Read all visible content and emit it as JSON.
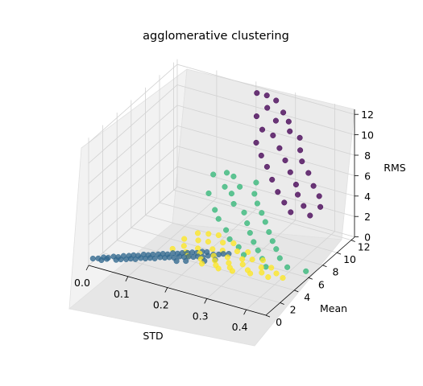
{
  "chart_data": {
    "type": "scatter",
    "projection": "3d",
    "title": "agglomerative clustering",
    "xlabel": "STD",
    "ylabel": "Mean",
    "zlabel": "RMS",
    "xlim": [
      0.0,
      0.45
    ],
    "ylim": [
      0,
      12.5
    ],
    "zlim": [
      0,
      12.5
    ],
    "x_ticks": [
      "0.0",
      "0.1",
      "0.2",
      "0.3",
      "0.4"
    ],
    "y_ticks": [
      "0",
      "2",
      "4",
      "6",
      "8",
      "10",
      "12"
    ],
    "z_ticks": [
      "0",
      "2",
      "4",
      "6",
      "8",
      "10",
      "12"
    ],
    "grid": true,
    "colors": {
      "cluster_0": "#440154",
      "cluster_1": "#31688e",
      "cluster_2": "#35b779",
      "cluster_3": "#fde725"
    },
    "series": [
      {
        "points": [
          [
            0.22,
            11.5,
            12.2
          ],
          [
            0.24,
            11.8,
            12.0
          ],
          [
            0.26,
            12.0,
            11.6
          ],
          [
            0.25,
            11.3,
            11.2
          ],
          [
            0.28,
            11.9,
            10.7
          ],
          [
            0.23,
            10.9,
            10.4
          ],
          [
            0.27,
            11.4,
            10.1
          ],
          [
            0.29,
            12.1,
            9.8
          ],
          [
            0.25,
            10.6,
            9.5
          ],
          [
            0.3,
            11.7,
            9.2
          ],
          [
            0.27,
            11.0,
            8.9
          ],
          [
            0.32,
            12.0,
            8.6
          ],
          [
            0.24,
            10.3,
            8.3
          ],
          [
            0.29,
            10.8,
            8.0
          ],
          [
            0.33,
            11.5,
            7.8
          ],
          [
            0.26,
            9.9,
            7.5
          ],
          [
            0.31,
            10.5,
            7.2
          ],
          [
            0.34,
            11.2,
            7.0
          ],
          [
            0.28,
            9.6,
            6.8
          ],
          [
            0.33,
            10.1,
            6.5
          ],
          [
            0.36,
            11.0,
            6.2
          ],
          [
            0.3,
            9.2,
            6.0
          ],
          [
            0.35,
            9.8,
            5.7
          ],
          [
            0.38,
            10.6,
            5.4
          ],
          [
            0.32,
            8.9,
            5.2
          ],
          [
            0.36,
            9.5,
            5.0
          ],
          [
            0.4,
            10.3,
            4.8
          ],
          [
            0.34,
            8.7,
            4.5
          ],
          [
            0.38,
            9.2,
            4.3
          ],
          [
            0.41,
            9.9,
            4.1
          ],
          [
            0.36,
            8.5,
            3.9
          ],
          [
            0.4,
            9.0,
            3.7
          ]
        ]
      },
      {
        "points": [
          [
            0.0,
            0.6,
            0.3
          ],
          [
            0.01,
            0.8,
            0.3
          ],
          [
            0.02,
            1.0,
            0.4
          ],
          [
            0.02,
            0.7,
            0.3
          ],
          [
            0.03,
            1.1,
            0.4
          ],
          [
            0.04,
            1.3,
            0.5
          ],
          [
            0.03,
            0.9,
            0.4
          ],
          [
            0.05,
            1.4,
            0.5
          ],
          [
            0.05,
            1.1,
            0.4
          ],
          [
            0.06,
            1.6,
            0.6
          ],
          [
            0.06,
            1.2,
            0.5
          ],
          [
            0.07,
            1.8,
            0.6
          ],
          [
            0.07,
            1.4,
            0.5
          ],
          [
            0.08,
            1.9,
            0.7
          ],
          [
            0.08,
            1.5,
            0.6
          ],
          [
            0.09,
            2.0,
            0.7
          ],
          [
            0.09,
            1.6,
            0.6
          ],
          [
            0.1,
            2.2,
            0.8
          ],
          [
            0.1,
            1.8,
            0.7
          ],
          [
            0.11,
            2.3,
            0.8
          ],
          [
            0.11,
            1.9,
            0.7
          ],
          [
            0.12,
            2.4,
            0.9
          ],
          [
            0.12,
            2.0,
            0.8
          ],
          [
            0.13,
            2.6,
            0.9
          ],
          [
            0.13,
            2.1,
            0.8
          ],
          [
            0.14,
            2.7,
            1.0
          ],
          [
            0.14,
            2.3,
            0.9
          ],
          [
            0.15,
            2.8,
            1.0
          ],
          [
            0.15,
            2.4,
            0.9
          ],
          [
            0.16,
            3.0,
            1.1
          ],
          [
            0.16,
            2.5,
            1.0
          ],
          [
            0.17,
            3.1,
            1.1
          ],
          [
            0.17,
            2.6,
            1.0
          ],
          [
            0.18,
            3.2,
            1.2
          ],
          [
            0.18,
            2.8,
            1.1
          ],
          [
            0.19,
            3.4,
            1.2
          ],
          [
            0.19,
            2.9,
            1.1
          ],
          [
            0.2,
            3.5,
            1.3
          ],
          [
            0.2,
            3.0,
            1.2
          ],
          [
            0.21,
            3.6,
            1.3
          ],
          [
            0.21,
            3.1,
            1.2
          ],
          [
            0.22,
            3.8,
            1.4
          ],
          [
            0.22,
            3.2,
            1.3
          ],
          [
            0.23,
            3.9,
            1.4
          ],
          [
            0.23,
            3.3,
            1.3
          ],
          [
            0.24,
            3.5,
            1.4
          ],
          [
            0.25,
            3.7,
            1.5
          ],
          [
            0.26,
            3.9,
            1.5
          ],
          [
            0.27,
            4.0,
            1.6
          ],
          [
            0.28,
            4.2,
            1.6
          ],
          [
            0.2,
            2.6,
            1.0
          ],
          [
            0.24,
            3.0,
            1.2
          ],
          [
            0.26,
            3.4,
            1.3
          ],
          [
            0.18,
            2.4,
            0.9
          ]
        ]
      },
      {
        "points": [
          [
            0.14,
            9.8,
            4.4
          ],
          [
            0.16,
            10.6,
            4.3
          ],
          [
            0.18,
            9.2,
            4.0
          ],
          [
            0.17,
            11.0,
            3.8
          ],
          [
            0.2,
            10.2,
            3.6
          ],
          [
            0.22,
            11.4,
            3.5
          ],
          [
            0.15,
            8.6,
            3.4
          ],
          [
            0.19,
            9.6,
            3.2
          ],
          [
            0.23,
            10.6,
            3.0
          ],
          [
            0.21,
            8.8,
            2.9
          ],
          [
            0.25,
            9.9,
            2.7
          ],
          [
            0.18,
            7.8,
            2.6
          ],
          [
            0.24,
            8.6,
            2.5
          ],
          [
            0.27,
            9.4,
            2.3
          ],
          [
            0.2,
            7.2,
            2.3
          ],
          [
            0.26,
            7.9,
            2.1
          ],
          [
            0.29,
            8.8,
            2.0
          ],
          [
            0.23,
            6.6,
            1.9
          ],
          [
            0.28,
            7.2,
            1.8
          ],
          [
            0.31,
            8.2,
            1.6
          ],
          [
            0.25,
            6.0,
            1.6
          ],
          [
            0.3,
            6.6,
            1.5
          ],
          [
            0.33,
            7.6,
            1.3
          ],
          [
            0.28,
            5.6,
            1.4
          ],
          [
            0.32,
            6.1,
            1.2
          ],
          [
            0.35,
            7.0,
            1.1
          ],
          [
            0.3,
            5.2,
            1.1
          ],
          [
            0.34,
            5.6,
            0.9
          ],
          [
            0.37,
            6.4,
            0.8
          ],
          [
            0.36,
            5.0,
            0.7
          ],
          [
            0.4,
            5.8,
            0.6
          ],
          [
            0.44,
            6.2,
            0.4
          ]
        ]
      },
      {
        "points": [
          [
            0.18,
            5.4,
            1.8
          ],
          [
            0.2,
            5.8,
            1.7
          ],
          [
            0.22,
            6.1,
            1.6
          ],
          [
            0.16,
            4.6,
            1.5
          ],
          [
            0.19,
            4.9,
            1.5
          ],
          [
            0.21,
            5.2,
            1.4
          ],
          [
            0.24,
            5.6,
            1.4
          ],
          [
            0.26,
            6.0,
            1.3
          ],
          [
            0.17,
            4.0,
            1.3
          ],
          [
            0.2,
            4.3,
            1.2
          ],
          [
            0.23,
            4.7,
            1.2
          ],
          [
            0.25,
            5.0,
            1.1
          ],
          [
            0.28,
            5.4,
            1.1
          ],
          [
            0.3,
            5.8,
            1.0
          ],
          [
            0.15,
            3.5,
            1.1
          ],
          [
            0.18,
            3.7,
            1.0
          ],
          [
            0.21,
            4.0,
            1.0
          ],
          [
            0.24,
            4.3,
            0.9
          ],
          [
            0.27,
            4.6,
            0.9
          ],
          [
            0.3,
            5.0,
            0.8
          ],
          [
            0.32,
            5.3,
            0.8
          ],
          [
            0.34,
            5.7,
            0.7
          ],
          [
            0.19,
            3.4,
            0.9
          ],
          [
            0.22,
            3.6,
            0.8
          ],
          [
            0.25,
            3.9,
            0.8
          ],
          [
            0.28,
            4.2,
            0.7
          ],
          [
            0.31,
            4.5,
            0.7
          ],
          [
            0.35,
            4.9,
            0.6
          ],
          [
            0.37,
            5.2,
            0.6
          ],
          [
            0.23,
            3.2,
            0.7
          ],
          [
            0.26,
            3.5,
            0.7
          ],
          [
            0.29,
            3.8,
            0.6
          ],
          [
            0.33,
            4.1,
            0.6
          ],
          [
            0.36,
            4.4,
            0.5
          ],
          [
            0.39,
            4.8,
            0.5
          ],
          [
            0.27,
            3.3,
            0.6
          ],
          [
            0.3,
            3.6,
            0.5
          ],
          [
            0.34,
            3.9,
            0.5
          ],
          [
            0.38,
            4.2,
            0.4
          ],
          [
            0.41,
            4.6,
            0.4
          ]
        ]
      }
    ]
  }
}
